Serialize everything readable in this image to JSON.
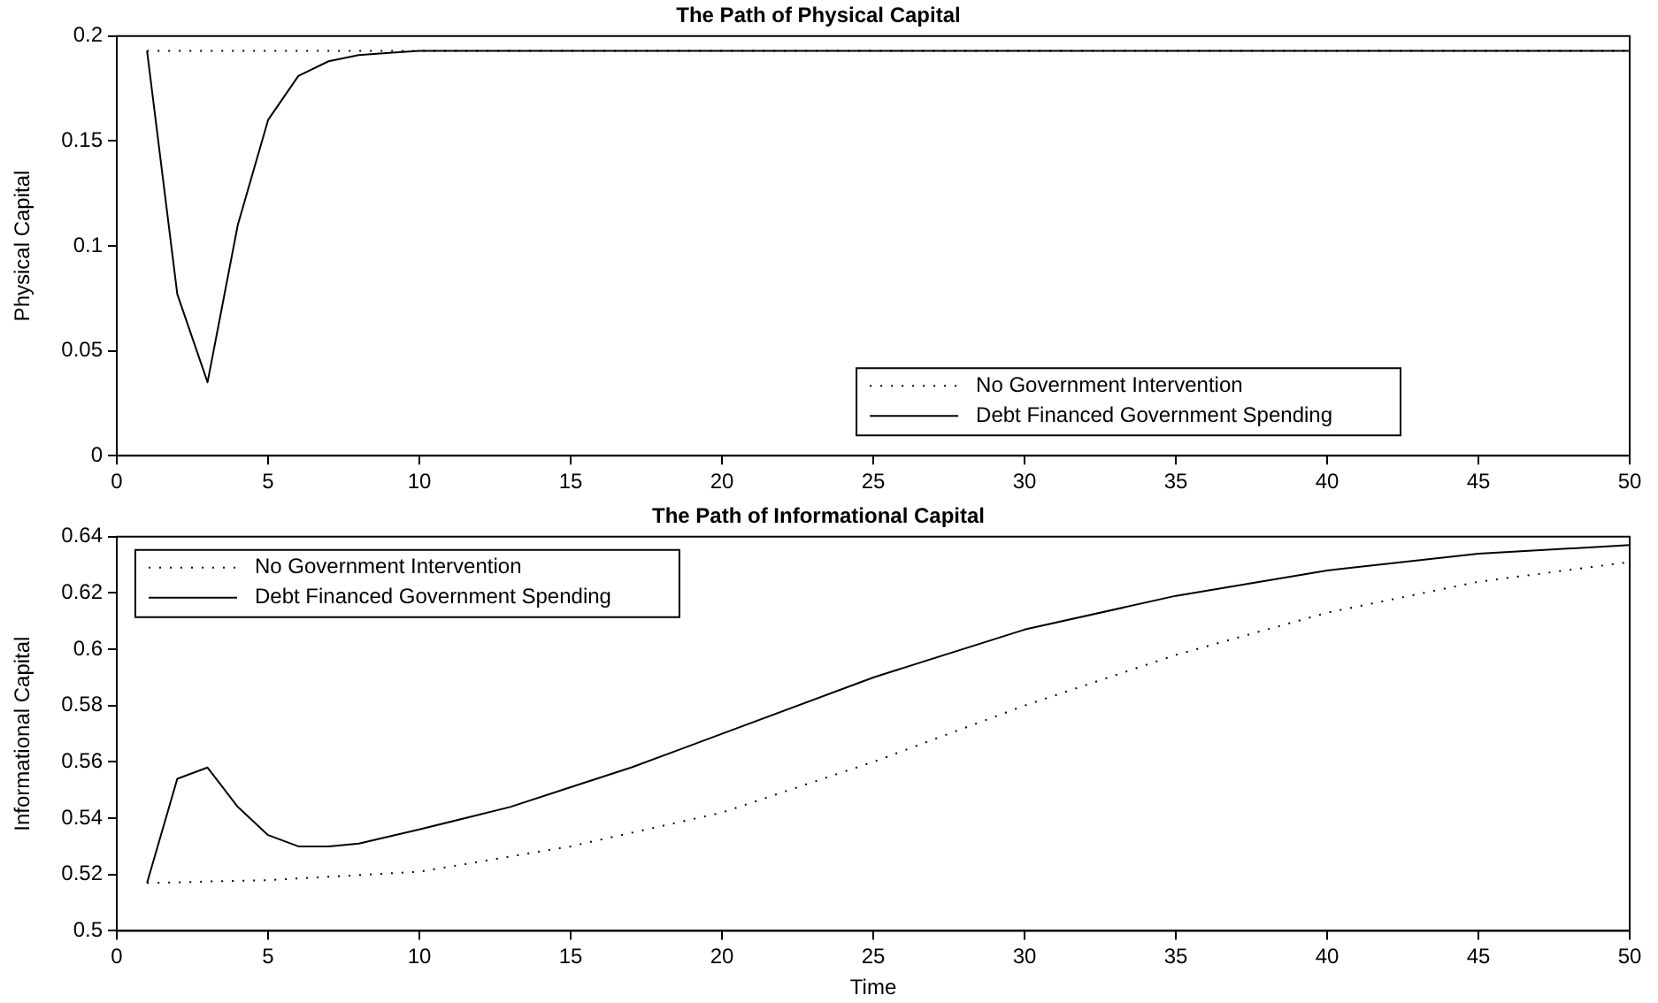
{
  "chart_data": [
    {
      "type": "line",
      "title": "The Path of Physical Capital",
      "ylabel": "Physical Capital",
      "xlim": [
        0,
        50
      ],
      "xticks": [
        0,
        5,
        10,
        15,
        20,
        25,
        30,
        35,
        40,
        45,
        50
      ],
      "ylim": [
        0,
        0.2
      ],
      "yticks": [
        0,
        0.05,
        0.1,
        0.15,
        0.2
      ],
      "grid": false,
      "legend": "bottom right",
      "marker": "none",
      "series": [
        {
          "name": "No Government Intervention",
          "color": "#000000",
          "line_style": "dotted",
          "x": [
            1,
            50
          ],
          "values": [
            0.193,
            0.193
          ]
        },
        {
          "name": "Debt Financed Government Spending",
          "color": "#000000",
          "line_style": "solid",
          "x": [
            1,
            2,
            3,
            4,
            5,
            6,
            7,
            8,
            9,
            10,
            50
          ],
          "values": [
            0.193,
            0.077,
            0.035,
            0.11,
            0.16,
            0.181,
            0.188,
            0.191,
            0.192,
            0.193,
            0.193
          ]
        }
      ]
    },
    {
      "type": "line",
      "title": "The Path of Informational Capital",
      "xlabel": "Time",
      "ylabel": "Informational Capital",
      "xlim": [
        0,
        50
      ],
      "xticks": [
        0,
        5,
        10,
        15,
        20,
        25,
        30,
        35,
        40,
        45,
        50
      ],
      "ylim": [
        0.5,
        0.64
      ],
      "yticks": [
        0.5,
        0.52,
        0.54,
        0.56,
        0.58,
        0.6,
        0.62,
        0.64
      ],
      "grid": false,
      "legend": "top left",
      "marker": "none",
      "series": [
        {
          "name": "No Government Intervention",
          "color": "#000000",
          "line_style": "dotted",
          "x": [
            1,
            5,
            10,
            15,
            20,
            25,
            30,
            35,
            40,
            45,
            50
          ],
          "values": [
            0.517,
            0.518,
            0.521,
            0.53,
            0.542,
            0.56,
            0.58,
            0.598,
            0.613,
            0.624,
            0.631
          ]
        },
        {
          "name": "Debt Financed Government Spending",
          "color": "#000000",
          "line_style": "solid",
          "x": [
            1,
            2,
            3,
            4,
            5,
            6,
            7,
            8,
            10,
            13,
            15,
            17,
            20,
            25,
            30,
            35,
            40,
            45,
            50
          ],
          "values": [
            0.517,
            0.554,
            0.558,
            0.544,
            0.534,
            0.53,
            0.53,
            0.531,
            0.536,
            0.544,
            0.551,
            0.558,
            0.57,
            0.59,
            0.607,
            0.619,
            0.628,
            0.634,
            0.637
          ]
        }
      ]
    }
  ]
}
